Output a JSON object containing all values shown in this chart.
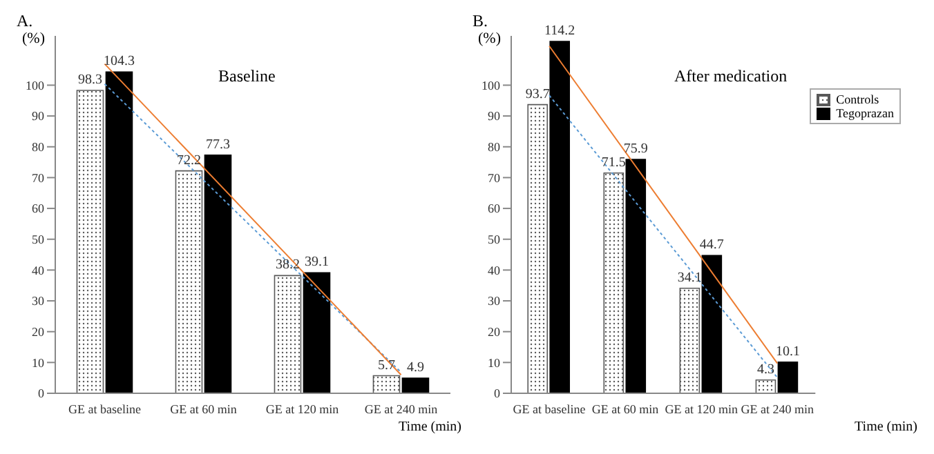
{
  "chart_data": [
    {
      "type": "bar",
      "title": "A.",
      "subtitle": "Baseline",
      "ylabel": "(%)",
      "xlabel": "Time (min)",
      "categories": [
        "GE at baseline",
        "GE at 60 min",
        "GE at 120 min",
        "GE at 240 min"
      ],
      "ylim": [
        0,
        116
      ],
      "yticks": [
        0,
        10,
        20,
        30,
        40,
        50,
        60,
        70,
        80,
        90,
        100
      ],
      "grid": false,
      "legend": false,
      "series": [
        {
          "color": "#595959",
          "values": [
            98.3,
            72.2,
            38.2,
            5.7
          ],
          "value_labels": [
            "98.3",
            "72.2",
            "38.2",
            "5.7"
          ]
        },
        {
          "color": "#000000",
          "values": [
            104.3,
            77.3,
            39.1,
            4.9
          ],
          "value_labels": [
            "104.3",
            "77.3",
            "39.1",
            "4.9"
          ]
        },
        {
          "type": "line",
          "color": "#5b9bd5",
          "line_style": "dotted",
          "x": [
            "GE at baseline",
            "GE at 240 min"
          ],
          "values": [
            100.4,
            6.8
          ]
        },
        {
          "type": "line",
          "color": "#ed7d31",
          "line_style": "solid",
          "x": [
            "GE at baseline",
            "GE at 240 min"
          ],
          "values": [
            106.9,
            6.0
          ]
        }
      ]
    },
    {
      "type": "bar",
      "title": "B.",
      "subtitle": "After medication",
      "ylabel": "(%)",
      "xlabel": "Time (min)",
      "categories": [
        "GE at baseline",
        "GE at 60 min",
        "GE at 120 min",
        "GE at 240 min"
      ],
      "ylim": [
        0,
        116
      ],
      "yticks": [
        0,
        10,
        20,
        30,
        40,
        50,
        60,
        70,
        80,
        90,
        100
      ],
      "grid": false,
      "legend": "top right",
      "series": [
        {
          "name": "Controls",
          "color": "#595959",
          "values": [
            93.7,
            71.5,
            34.1,
            4.3
          ],
          "value_labels": [
            "93.7",
            "71.5",
            "34.1",
            "4.3"
          ]
        },
        {
          "name": "Tegoprazan",
          "color": "#000000",
          "values": [
            114.2,
            75.9,
            44.7,
            10.1
          ],
          "value_labels": [
            "114.2",
            "75.9",
            "44.7",
            "10.1"
          ]
        },
        {
          "type": "line",
          "color": "#5b9bd5",
          "line_style": "dotted",
          "x": [
            "GE at baseline",
            "GE at 240 min"
          ],
          "values": [
            96.7,
            5.1
          ]
        },
        {
          "type": "line",
          "color": "#ed7d31",
          "line_style": "solid",
          "x": [
            "GE at baseline",
            "GE at 240 min"
          ],
          "values": [
            112.7,
            9.7
          ]
        }
      ]
    }
  ]
}
